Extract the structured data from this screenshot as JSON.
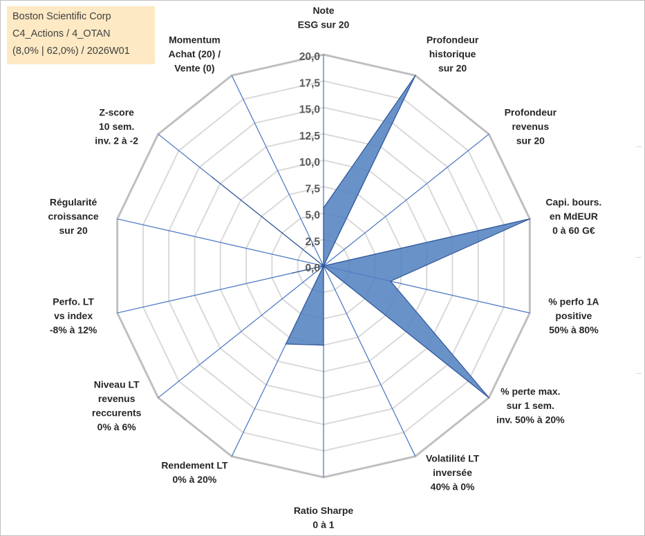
{
  "title": {
    "line1": "Boston Scientific Corp",
    "line2": "C4_Actions / 4_OTAN",
    "line3": "(8,0% | 62,0%) / 2026W01"
  },
  "colors": {
    "fill": "#4f7fbf",
    "stroke": "#2f5597",
    "grid_outer": "#bfbfbf",
    "grid_inner": "#d9d9d9",
    "spokes": "#4472c4",
    "title_bg": "#fde9c4"
  },
  "chart_data": {
    "type": "radar",
    "rmax": 20,
    "ticks": [
      "0,0",
      "2,5",
      "5,0",
      "7,5",
      "10,0",
      "12,5",
      "15,0",
      "17,5",
      "20,0"
    ],
    "tick_values": [
      0,
      2.5,
      5,
      7.5,
      10,
      12.5,
      15,
      17.5,
      20
    ],
    "axes": [
      {
        "label": [
          "Note",
          "ESG sur 20"
        ],
        "value": 5.5
      },
      {
        "label": [
          "Profondeur",
          "historique",
          "sur 20"
        ],
        "value": 20
      },
      {
        "label": [
          "Profondeur",
          "revenus",
          "sur 20"
        ],
        "value": 0
      },
      {
        "label": [
          "Capi. bours.",
          "en MdEUR",
          "0 à 60 G€"
        ],
        "value": 20
      },
      {
        "label": [
          "% perfo 1A",
          "positive",
          "50% à 80%"
        ],
        "value": 6.5
      },
      {
        "label": [
          "% perte max.",
          "sur 1 sem.",
          "inv. 50% à 20%"
        ],
        "value": 20
      },
      {
        "label": [
          "Volatilité LT",
          "inversée",
          "40% à 0%"
        ],
        "value": 0
      },
      {
        "label": [
          "Ratio Sharpe",
          "0 à 1"
        ],
        "value": 7.5
      },
      {
        "label": [
          "Rendement LT",
          "0% à 20%"
        ],
        "value": 8.2
      },
      {
        "label": [
          "Niveau LT",
          "revenus",
          "reccurents",
          "0% à 6%"
        ],
        "value": 0
      },
      {
        "label": [
          "Perfo. LT",
          "vs index",
          "-8% à 12%"
        ],
        "value": 3
      },
      {
        "label": [
          "Régularité",
          "croissance",
          "sur 20"
        ],
        "value": 0
      },
      {
        "label": [
          "Z-score",
          "10 sem.",
          "inv. 2 à -2"
        ],
        "value": 13.5
      },
      {
        "label": [
          "Momentum",
          "Achat (20) /",
          "Vente (0)"
        ],
        "value": 0
      }
    ]
  }
}
